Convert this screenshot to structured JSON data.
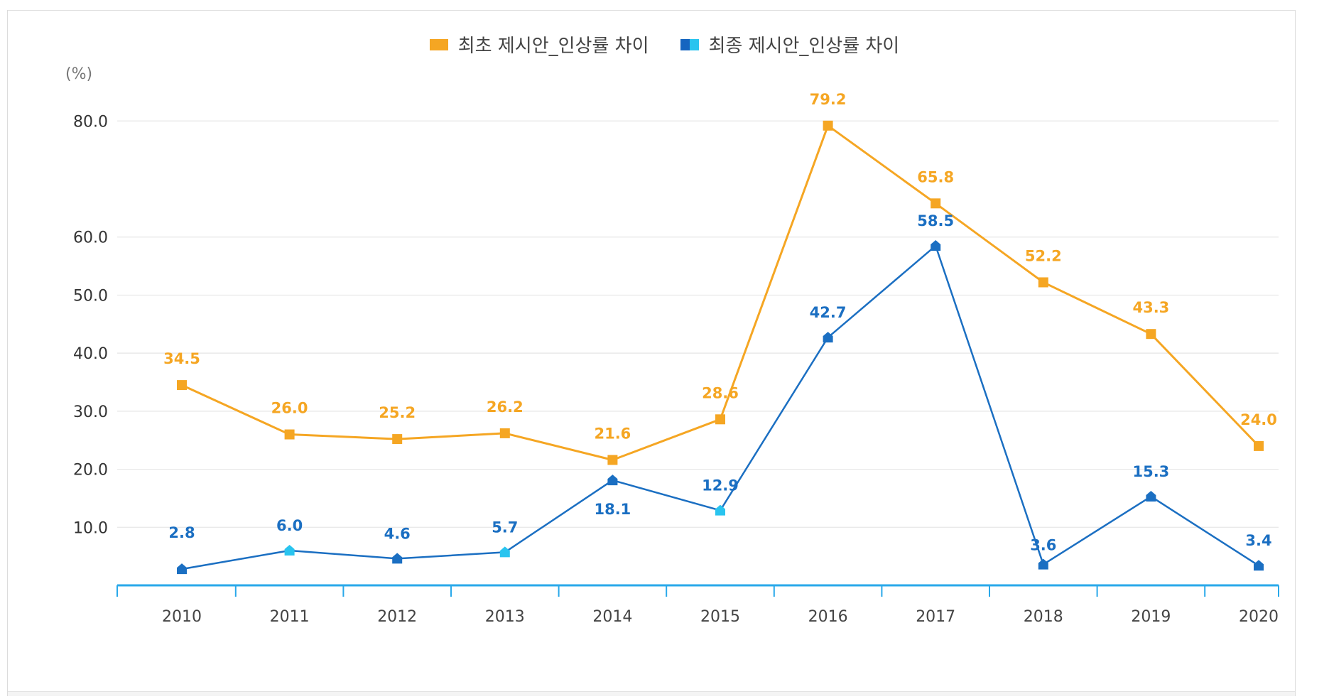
{
  "chart_data": {
    "type": "line",
    "title": "",
    "unit_label": "(%)",
    "xlabel": "",
    "ylabel": "(%)",
    "ylim": [
      0,
      85
    ],
    "yticks": [
      "80.0",
      "60.0",
      "50.0",
      "40.0",
      "30.0",
      "20.0",
      "10.0"
    ],
    "yticks_values": [
      80,
      60,
      50,
      40,
      30,
      20,
      10
    ],
    "categories": [
      "2010",
      "2011",
      "2012",
      "2013",
      "2014",
      "2015",
      "2016",
      "2017",
      "2018",
      "2019",
      "2020"
    ],
    "series": [
      {
        "name": "최초 제시안_인상률 차이",
        "color": "#f5a623",
        "values": [
          34.5,
          26.0,
          25.2,
          26.2,
          21.6,
          28.6,
          79.2,
          65.8,
          52.2,
          43.3,
          24.0
        ],
        "labels": [
          "34.5",
          "26.0",
          "25.2",
          "26.2",
          "21.6",
          "28.6",
          "79.2",
          "65.8",
          "52.2",
          "43.3",
          "24.0"
        ]
      },
      {
        "name": "최종 제시안_인상률 차이",
        "color": "#1b6fc2",
        "color_alt": "#29c4ef",
        "values": [
          2.8,
          6.0,
          4.6,
          5.7,
          18.1,
          12.9,
          42.7,
          58.5,
          3.6,
          15.3,
          3.4
        ],
        "labels": [
          "2.8",
          "6.0",
          "4.6",
          "5.7",
          "18.1",
          "12.9",
          "42.7",
          "58.5",
          "3.6",
          "15.3",
          "3.4"
        ]
      }
    ],
    "legend": "top-center",
    "grid": true
  }
}
